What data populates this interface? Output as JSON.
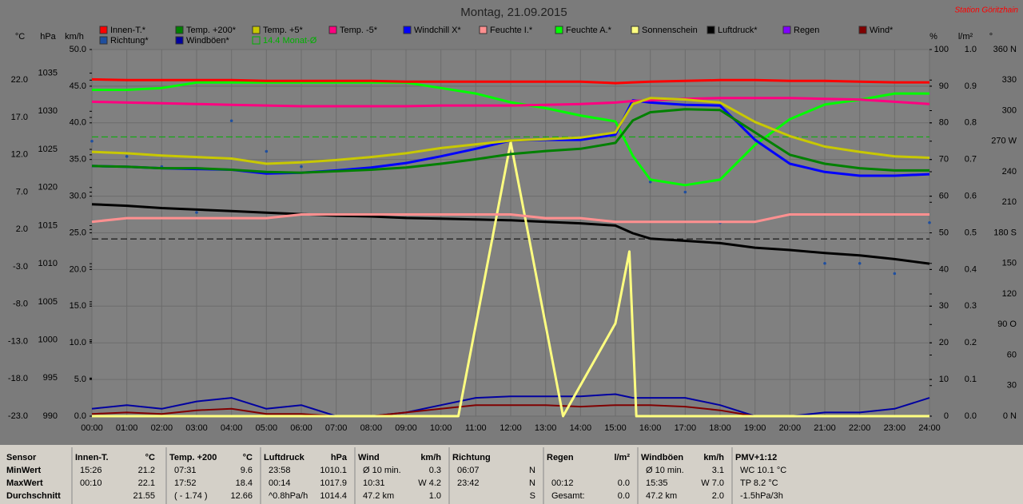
{
  "chart_data": {
    "type": "line",
    "title": "Montag, 21.09.2015",
    "station": "Station Göritzhain",
    "x": [
      0,
      1,
      2,
      3,
      4,
      5,
      6,
      7,
      8,
      9,
      10,
      11,
      12,
      13,
      14,
      15,
      15.5,
      16,
      17,
      18,
      19,
      20,
      21,
      22,
      23,
      24
    ],
    "xlim": [
      0,
      24
    ],
    "xticks": [
      {
        "value": 0,
        "label": "00:00"
      },
      {
        "value": 1,
        "label": "01:00"
      },
      {
        "value": 2,
        "label": "02:00"
      },
      {
        "value": 3,
        "label": "03:00"
      },
      {
        "value": 4,
        "label": "04:00"
      },
      {
        "value": 5,
        "label": "05:00"
      },
      {
        "value": 6,
        "label": "06:00"
      },
      {
        "value": 7,
        "label": "07:00"
      },
      {
        "value": 8,
        "label": "08:00"
      },
      {
        "value": 9,
        "label": "09:00"
      },
      {
        "value": 10,
        "label": "10:00"
      },
      {
        "value": 11,
        "label": "11:00"
      },
      {
        "value": 12,
        "label": "12:00"
      },
      {
        "value": 13,
        "label": "13:00"
      },
      {
        "value": 14,
        "label": "14:00"
      },
      {
        "value": 15,
        "label": "15:00"
      },
      {
        "value": 16,
        "label": "16:00"
      },
      {
        "value": 17,
        "label": "17:00"
      },
      {
        "value": 18,
        "label": "18:00"
      },
      {
        "value": 19,
        "label": "19:00"
      },
      {
        "value": 20,
        "label": "20:00"
      },
      {
        "value": 21,
        "label": "21:00"
      },
      {
        "value": 22,
        "label": "22:00"
      },
      {
        "value": 23,
        "label": "23:00"
      },
      {
        "value": 24,
        "label": "24:00"
      }
    ],
    "grid": true,
    "axes": {
      "temp": {
        "unit": "°C",
        "lim": [
          -23,
          26.1
        ],
        "ticks": [
          {
            "value": -23,
            "label": "-23.0"
          },
          {
            "value": -18,
            "label": "-18.0"
          },
          {
            "value": -13,
            "label": "-13.0"
          },
          {
            "value": -8,
            "label": "-8.0"
          },
          {
            "value": -3,
            "label": "-3.0"
          },
          {
            "value": 2,
            "label": "2.0"
          },
          {
            "value": 7,
            "label": "7.0"
          },
          {
            "value": 12,
            "label": "12.0"
          },
          {
            "value": 17,
            "label": "17.0"
          },
          {
            "value": 22,
            "label": "22.0"
          }
        ]
      },
      "hpa": {
        "unit": "hPa",
        "lim": [
          990,
          1038.1
        ],
        "ticks": [
          990,
          995,
          1000,
          1005,
          1010,
          1015,
          1020,
          1025,
          1030,
          1035
        ]
      },
      "kmh": {
        "unit": "km/h",
        "lim": [
          0,
          50
        ],
        "ticks": [
          {
            "value": 0,
            "label": "0.0"
          },
          {
            "value": 5,
            "label": "5.0"
          },
          {
            "value": 10,
            "label": "10.0"
          },
          {
            "value": 15,
            "label": "15.0"
          },
          {
            "value": 20,
            "label": "20.0"
          },
          {
            "value": 25,
            "label": "25.0"
          },
          {
            "value": 30,
            "label": "30.0"
          },
          {
            "value": 35,
            "label": "35.0"
          },
          {
            "value": 40,
            "label": "40.0"
          },
          {
            "value": 45,
            "label": "45.0"
          },
          {
            "value": 50,
            "label": "50.0"
          }
        ]
      },
      "pct": {
        "unit": "%",
        "lim": [
          0,
          100
        ],
        "ticks": [
          0,
          10,
          20,
          30,
          40,
          50,
          60,
          70,
          80,
          90,
          100
        ]
      },
      "rain": {
        "unit": "l/m²",
        "lim": [
          0,
          1
        ],
        "ticks": [
          {
            "value": 0,
            "label": "0.0"
          },
          0.1,
          0.2,
          0.3,
          0.4,
          0.5,
          0.6,
          0.7,
          0.8,
          0.9,
          {
            "value": 1,
            "label": "1.0"
          }
        ]
      },
      "deg": {
        "unit": "°",
        "lim": [
          0,
          360
        ],
        "ticks": [
          {
            "value": 0,
            "label": "0 N"
          },
          30,
          60,
          {
            "value": 90,
            "label": "90 O"
          },
          120,
          150,
          {
            "value": 180,
            "label": "180 S"
          },
          210,
          240,
          {
            "value": 270,
            "label": "270 W"
          },
          300,
          330,
          {
            "value": 360,
            "label": "360 N"
          }
        ]
      }
    },
    "series": [
      {
        "name": "Innen-T.*",
        "color": "#ff0000",
        "axis": "temp",
        "values": [
          22.1,
          22.0,
          22.0,
          22.0,
          22.0,
          21.9,
          21.9,
          21.9,
          21.9,
          21.8,
          21.8,
          21.8,
          21.8,
          21.8,
          21.8,
          21.6,
          21.7,
          21.8,
          21.9,
          22.0,
          22.0,
          21.9,
          21.9,
          21.8,
          21.7,
          21.7
        ]
      },
      {
        "name": "Temp. +200*",
        "color": "#008000",
        "axis": "temp",
        "values": [
          10.5,
          10.4,
          10.2,
          10.2,
          10.0,
          9.7,
          9.6,
          9.8,
          10.0,
          10.3,
          10.8,
          11.4,
          12.1,
          12.5,
          12.8,
          13.6,
          16.6,
          17.7,
          18.1,
          18.0,
          15.0,
          12.0,
          10.8,
          10.2,
          9.9,
          9.9
        ]
      },
      {
        "name": "Temp. +5*",
        "color": "#c8c800",
        "axis": "temp",
        "values": [
          12.4,
          12.2,
          11.9,
          11.7,
          11.5,
          10.8,
          11.0,
          11.3,
          11.7,
          12.2,
          12.9,
          13.4,
          13.9,
          14.1,
          14.3,
          15.0,
          18.8,
          19.6,
          19.4,
          19.0,
          16.4,
          14.5,
          13.1,
          12.4,
          11.8,
          11.6
        ]
      },
      {
        "name": "Temp. -5*",
        "color": "#ff0080",
        "axis": "temp",
        "values": [
          19.1,
          19.0,
          18.9,
          18.8,
          18.7,
          18.6,
          18.5,
          18.5,
          18.5,
          18.5,
          18.6,
          18.6,
          18.6,
          18.7,
          18.8,
          19.0,
          19.2,
          19.3,
          19.5,
          19.6,
          19.6,
          19.6,
          19.5,
          19.4,
          19.1,
          18.8
        ]
      },
      {
        "name": "Windchill X*",
        "color": "#0000ff",
        "axis": "temp",
        "values": [
          10.5,
          10.4,
          10.2,
          10.1,
          10.0,
          9.5,
          9.6,
          9.9,
          10.3,
          10.9,
          11.8,
          12.8,
          13.9,
          14.0,
          14.0,
          14.7,
          19.3,
          19.0,
          18.7,
          18.6,
          14.0,
          10.8,
          9.7,
          9.2,
          9.2,
          9.4
        ]
      },
      {
        "name": "Feuchte I.*",
        "color": "#ff9090",
        "axis": "pct",
        "values": [
          53,
          54,
          54,
          54,
          54,
          54,
          55,
          55,
          55,
          55,
          55,
          55,
          55,
          54,
          54,
          53,
          53,
          53,
          53,
          53,
          53,
          55,
          55,
          55,
          55,
          55
        ]
      },
      {
        "name": "Feuchte A.*",
        "color": "#00ff00",
        "axis": "pct",
        "values": [
          89,
          89,
          89.5,
          91,
          91,
          91,
          91,
          91,
          91,
          91,
          89.5,
          88,
          85.6,
          84,
          82,
          80.4,
          71,
          64.5,
          63,
          64.5,
          74,
          81,
          85,
          86.3,
          88,
          88
        ]
      },
      {
        "name": "Sonnenschein",
        "color": "#ffff80",
        "axis": "pct",
        "x": [
          0,
          10.5,
          12,
          13.5,
          15,
          15.4,
          15.6,
          24
        ],
        "values": [
          0,
          0,
          74.7,
          0,
          25.3,
          44.9,
          0,
          0
        ]
      },
      {
        "name": "Luftdruck*",
        "color": "#000000",
        "axis": "hpa",
        "values": [
          1017.8,
          1017.6,
          1017.3,
          1017.1,
          1016.9,
          1016.7,
          1016.5,
          1016.3,
          1016.2,
          1016.0,
          1015.9,
          1015.8,
          1015.7,
          1015.5,
          1015.3,
          1015.0,
          1014.0,
          1013.3,
          1013.0,
          1012.7,
          1012.1,
          1011.8,
          1011.4,
          1011.1,
          1010.6,
          1010.0
        ]
      },
      {
        "name": "Regen",
        "color": "#8000ff",
        "axis": "rain"
      },
      {
        "name": "Wind*",
        "color": "#800000",
        "axis": "kmh",
        "values": [
          0.3,
          0.5,
          0.3,
          0.8,
          1.0,
          0.3,
          0.3,
          0,
          0,
          0.5,
          1.0,
          1.5,
          1.5,
          1.5,
          1.3,
          1.5,
          1.5,
          1.5,
          1.3,
          0.8,
          0,
          0,
          0,
          0,
          0,
          0
        ]
      },
      {
        "name": "Richtung*",
        "color": "#1f4f9f",
        "axis": "deg",
        "mark": "dots",
        "values": [
          270,
          255,
          245,
          200,
          290,
          260,
          245,
          null,
          null,
          null,
          null,
          null,
          null,
          null,
          null,
          null,
          null,
          230,
          220,
          190,
          null,
          null,
          150,
          150,
          140,
          190
        ]
      },
      {
        "name": "Windböen*",
        "color": "#0000a0",
        "axis": "kmh",
        "values": [
          1.0,
          1.5,
          1.0,
          2.0,
          2.5,
          1.0,
          1.5,
          0,
          0,
          0.5,
          1.5,
          2.5,
          2.7,
          2.7,
          2.7,
          3.0,
          2.5,
          2.5,
          2.5,
          1.5,
          0,
          0,
          0.5,
          0.5,
          1.0,
          2.5
        ]
      }
    ],
    "ref_lines": [
      {
        "name": "14.4 Monat-Ø",
        "value": 14.4,
        "axis": "temp",
        "color": "#00b000"
      },
      {
        "value": 1013.25,
        "axis": "hpa",
        "color": "#000000"
      }
    ]
  },
  "table": {
    "columns": [
      {
        "header": "Sensor",
        "rows": [
          {
            "left": "MinWert"
          },
          {
            "left": "MaxWert"
          },
          {
            "left": "Durchschnitt"
          }
        ]
      },
      {
        "header": "Innen-T.",
        "unit": "°C",
        "rows": [
          {
            "left": "15:26",
            "right": "21.2"
          },
          {
            "left": "00:10",
            "right": "22.1"
          },
          {
            "right": "21.55"
          }
        ]
      },
      {
        "header": "Temp. +200",
        "unit": "°C",
        "rows": [
          {
            "left": "07:31",
            "right": "9.6"
          },
          {
            "left": "17:52",
            "right": "18.4"
          },
          {
            "left": "( - 1.74 )",
            "right": "12.66"
          }
        ]
      },
      {
        "header": "Luftdruck",
        "unit": "hPa",
        "rows": [
          {
            "left": "23:58",
            "right": "1010.1"
          },
          {
            "left": "00:14",
            "right": "1017.9"
          },
          {
            "left": "^0.8hPa/h",
            "right": "1014.4"
          }
        ]
      },
      {
        "header": "Wind",
        "unit": "km/h",
        "rows": [
          {
            "left": "Ø 10 min.",
            "right": "0.3"
          },
          {
            "left": "10:31",
            "right": "W 4.2"
          },
          {
            "left": "47.2 km",
            "right": "1.0"
          }
        ]
      },
      {
        "header": "Richtung",
        "rows": [
          {
            "left": "06:07",
            "right": "N"
          },
          {
            "left": "23:42",
            "right": "N"
          },
          {
            "right": "S"
          }
        ]
      },
      {
        "header": "Regen",
        "unit": "l/m²",
        "rows": [
          {},
          {
            "left": "00:12",
            "right": "0.0"
          },
          {
            "left": "Gesamt:",
            "right": "0.0"
          }
        ]
      },
      {
        "header": "Windböen",
        "unit": "km/h",
        "rows": [
          {
            "left": "Ø 10 min.",
            "right": "3.1"
          },
          {
            "left": "15:35",
            "right": "W 7.0"
          },
          {
            "left": "47.2 km",
            "right": "2.0"
          }
        ]
      },
      {
        "header": "PMV+1:12",
        "rows": [
          {
            "left": "WC 10.1 °C"
          },
          {
            "left": "TP 8.2 °C"
          },
          {
            "left": "-1.5hPa/3h"
          }
        ]
      }
    ]
  }
}
